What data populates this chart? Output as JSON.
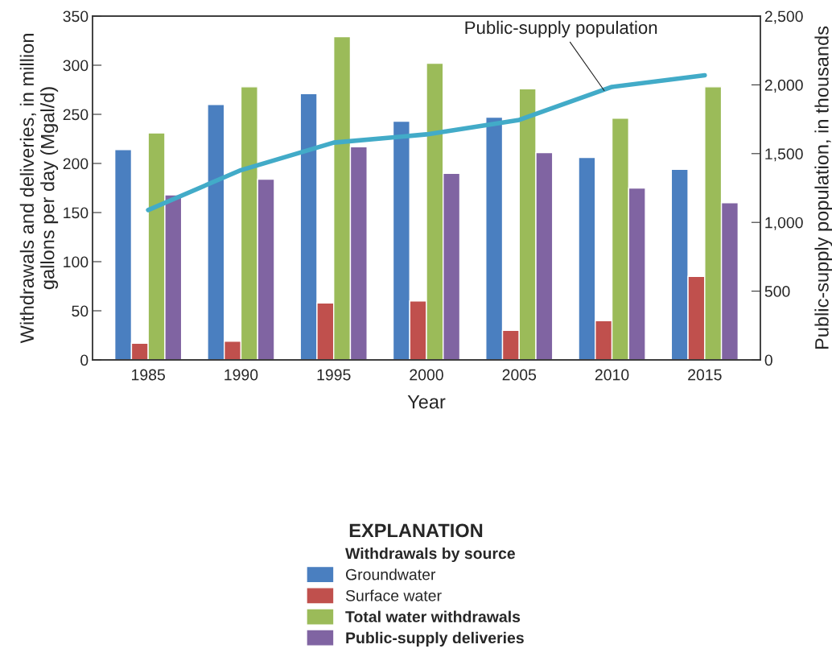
{
  "chart_data": {
    "type": "bar",
    "xlabel": "Year",
    "ylabel": "Withdrawals and deliveries, in million gallons per day (Mgal/d)",
    "y2label": "Public-supply population, in thousands",
    "categories": [
      "1985",
      "1990",
      "1995",
      "2000",
      "2005",
      "2010",
      "2015"
    ],
    "series": [
      {
        "name": "Groundwater",
        "color": "#4a7fc0",
        "values": [
          214,
          260,
          271,
          243,
          247,
          206,
          194
        ]
      },
      {
        "name": "Surface water",
        "color": "#c0504d",
        "values": [
          17,
          19,
          58,
          60,
          30,
          40,
          85
        ]
      },
      {
        "name": "Total water withdrawals",
        "color": "#9bbb59",
        "values": [
          231,
          278,
          329,
          302,
          276,
          246,
          278
        ]
      },
      {
        "name": "Public-supply deliveries",
        "color": "#8064a2",
        "values": [
          168,
          184,
          217,
          190,
          211,
          175,
          160
        ]
      },
      {
        "name": "Public-supply population",
        "type": "line",
        "axis": "y2",
        "color": "#42abc8",
        "values": [
          1090,
          1380,
          1580,
          1640,
          1745,
          1985,
          2070
        ]
      }
    ],
    "ylim": [
      0,
      350
    ],
    "yticks": [
      0,
      50,
      100,
      150,
      200,
      250,
      300,
      350
    ],
    "y2lim": [
      0,
      2500
    ],
    "y2ticks": [
      0,
      {
        "value": 500,
        "label": "500"
      },
      {
        "value": 1000,
        "label": "1,000"
      },
      {
        "value": 1500,
        "label": "1,500"
      },
      {
        "value": 2000,
        "label": "2,000"
      },
      {
        "value": 2500,
        "label": "2,500"
      }
    ],
    "legend": "bottom",
    "legend_title": "EXPLANATION",
    "annotations": [
      "Withdrawals by source"
    ],
    "grid": false,
    "marker": "none",
    "line_style": "solid"
  }
}
